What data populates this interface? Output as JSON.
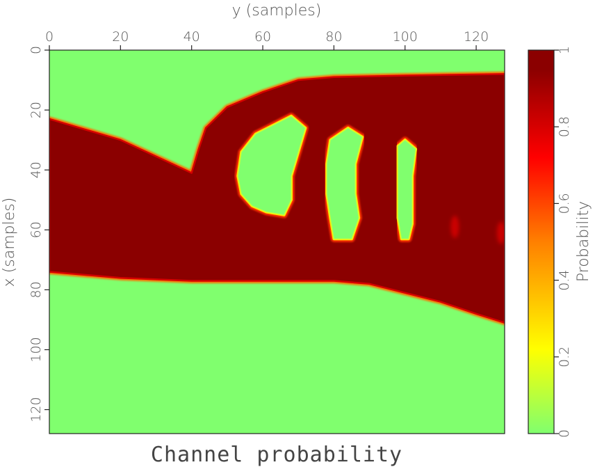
{
  "chart_data": {
    "type": "heatmap",
    "title": "Channel probability",
    "xlabel": "y (samples)",
    "ylabel": "x (samples)",
    "x_axis_position": "top",
    "xlim": [
      0,
      128
    ],
    "ylim": [
      0,
      128
    ],
    "y_inverted": true,
    "xticks": [
      0,
      20,
      40,
      60,
      80,
      100,
      120
    ],
    "yticks": [
      0,
      20,
      40,
      60,
      80,
      100,
      120
    ],
    "colorbar": {
      "label": "Probability",
      "range": [
        0,
        1
      ],
      "ticks": [
        0,
        0.2,
        0.4,
        0.6,
        0.8,
        1
      ],
      "tick_labels": [
        "0",
        "0.2",
        "0.4",
        "0.6",
        "0.8",
        "1"
      ],
      "colors": [
        "#80ff6e",
        "#ffff00",
        "#ff8000",
        "#ff0000",
        "#8b0000"
      ]
    },
    "background_value": 0,
    "channel": {
      "value": 1,
      "top_boundary": [
        [
          0,
          23
        ],
        [
          20,
          30
        ],
        [
          40,
          41
        ],
        [
          42,
          33
        ],
        [
          44,
          26
        ],
        [
          50,
          19
        ],
        [
          60,
          14
        ],
        [
          70,
          10
        ],
        [
          80,
          9
        ],
        [
          100,
          8.5
        ],
        [
          128,
          8
        ]
      ],
      "bottom_boundary": [
        [
          0,
          74
        ],
        [
          20,
          76
        ],
        [
          40,
          77
        ],
        [
          60,
          77
        ],
        [
          80,
          77
        ],
        [
          90,
          78
        ],
        [
          100,
          81
        ],
        [
          110,
          84
        ],
        [
          120,
          88
        ],
        [
          128,
          91
        ]
      ]
    },
    "holes": [
      {
        "value": 0,
        "outline": [
          [
            68,
            22
          ],
          [
            72,
            26
          ],
          [
            70,
            34
          ],
          [
            68,
            42
          ],
          [
            68,
            50
          ],
          [
            66,
            55
          ],
          [
            61,
            54
          ],
          [
            57,
            52
          ],
          [
            54,
            48
          ],
          [
            53,
            42
          ],
          [
            54,
            34
          ],
          [
            58,
            28
          ],
          [
            63,
            25
          ]
        ]
      },
      {
        "value": 0,
        "outline": [
          [
            84,
            26
          ],
          [
            88,
            29
          ],
          [
            86,
            38
          ],
          [
            86,
            48
          ],
          [
            87,
            56
          ],
          [
            85,
            63
          ],
          [
            80,
            63
          ],
          [
            79,
            56
          ],
          [
            78,
            48
          ],
          [
            78,
            38
          ],
          [
            79,
            30
          ]
        ]
      },
      {
        "value": 0,
        "outline": [
          [
            100,
            30
          ],
          [
            103,
            33
          ],
          [
            102,
            42
          ],
          [
            102,
            52
          ],
          [
            102,
            58
          ],
          [
            101,
            63
          ],
          [
            99,
            63
          ],
          [
            98,
            56
          ],
          [
            98,
            46
          ],
          [
            98,
            36
          ],
          [
            98,
            32
          ]
        ]
      }
    ],
    "faint_blobs": [
      {
        "x": 114,
        "y": 59,
        "value": 0.7
      },
      {
        "x": 127,
        "y": 61,
        "value": 0.85
      }
    ]
  }
}
